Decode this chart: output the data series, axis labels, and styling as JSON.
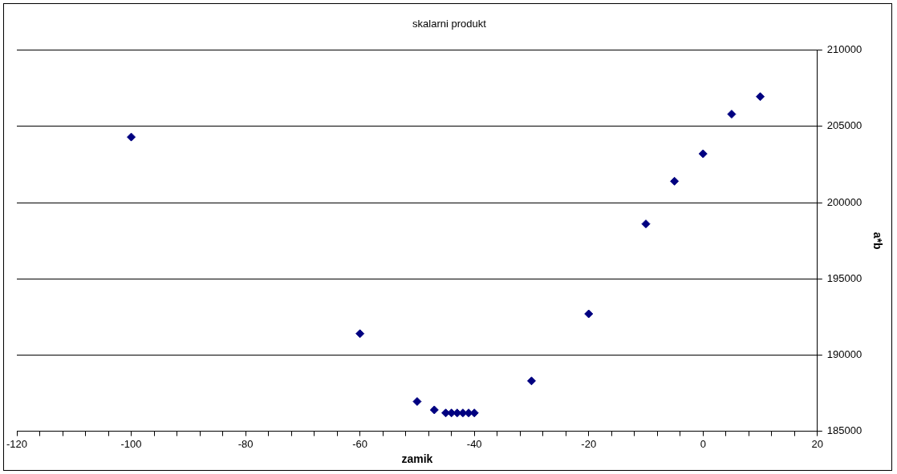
{
  "chart_data": {
    "type": "scatter",
    "title": "skalarni produkt",
    "xlabel": "zamik",
    "ylabel": "a*b",
    "x": [
      -100,
      -60,
      -50,
      -47,
      -45,
      -44,
      -43,
      -42,
      -41,
      -40,
      -30,
      -20,
      -10,
      -5,
      0,
      5,
      10
    ],
    "series": [
      {
        "color": "#000080",
        "values": [
          204300,
          191400,
          186950,
          186400,
          186200,
          186200,
          186200,
          186200,
          186200,
          186200,
          188300,
          192700,
          198600,
          201400,
          203200,
          205800,
          206950
        ]
      }
    ],
    "xlim": [
      -120,
      20
    ],
    "xticks": [
      -120,
      {
        "value": -116,
        "label": null
      },
      {
        "value": -112,
        "label": null
      },
      {
        "value": -108,
        "label": null
      },
      {
        "value": -104,
        "label": null
      },
      -100,
      {
        "value": -96,
        "label": null
      },
      {
        "value": -92,
        "label": null
      },
      {
        "value": -88,
        "label": null
      },
      {
        "value": -84,
        "label": null
      },
      -80,
      {
        "value": -76,
        "label": null
      },
      {
        "value": -72,
        "label": null
      },
      {
        "value": -68,
        "label": null
      },
      {
        "value": -64,
        "label": null
      },
      -60,
      {
        "value": -56,
        "label": null
      },
      {
        "value": -52,
        "label": null
      },
      {
        "value": -48,
        "label": null
      },
      {
        "value": -44,
        "label": null
      },
      -40,
      {
        "value": -36,
        "label": null
      },
      {
        "value": -32,
        "label": null
      },
      {
        "value": -28,
        "label": null
      },
      {
        "value": -24,
        "label": null
      },
      -20,
      {
        "value": -16,
        "label": null
      },
      {
        "value": -12,
        "label": null
      },
      {
        "value": -8,
        "label": null
      },
      {
        "value": -4,
        "label": null
      },
      0,
      {
        "value": 4,
        "label": null
      },
      {
        "value": 8,
        "label": null
      },
      {
        "value": 12,
        "label": null
      },
      {
        "value": 16,
        "label": null
      },
      20
    ],
    "ylim": [
      185000,
      210000
    ],
    "yticks": [
      185000,
      190000,
      195000,
      200000,
      205000,
      210000
    ],
    "grid": "y",
    "marker": "diamond",
    "legend": false
  }
}
